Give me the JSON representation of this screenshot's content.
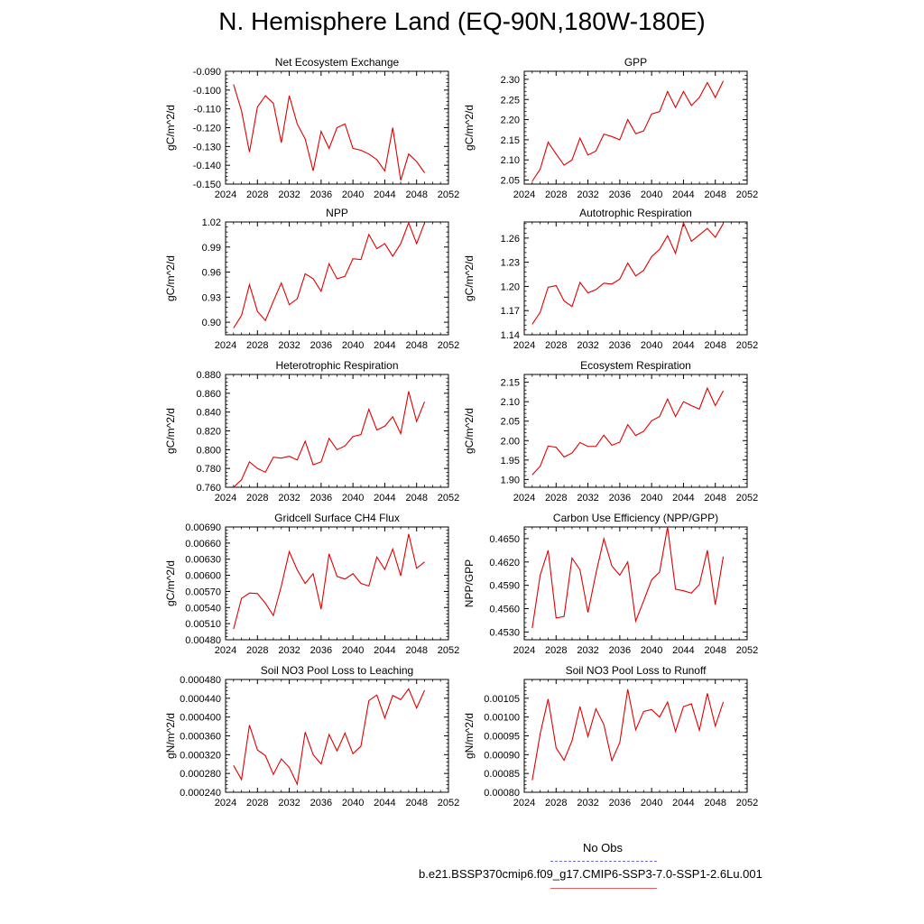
{
  "title": "N. Hemisphere Land (EQ-90N,180W-180E)",
  "legend": {
    "obs_label": "No Obs",
    "case_label": "b.e21.BSSP370cmip6.f09_g17.CMIP6-SSP3-7.0-SSP1-2.6Lu.001",
    "obs_color": "#6a6adf",
    "case_color": "#e00000"
  },
  "chart_data": [
    {
      "type": "line",
      "title": "Net Ecosystem Exchange",
      "ylabel": "gC/m^2/d",
      "xlim": [
        2024,
        2052
      ],
      "xticks": [
        "2024",
        "2028",
        "2032",
        "2036",
        "2040",
        "2044",
        "2048",
        "2052"
      ],
      "ylim": [
        -0.15,
        -0.09
      ],
      "yticks": [
        "-0.090",
        "-0.100",
        "-0.110",
        "-0.120",
        "-0.130",
        "-0.140",
        "-0.150"
      ],
      "x": [
        2025,
        2026,
        2027,
        2028,
        2029,
        2030,
        2031,
        2032,
        2033,
        2034,
        2035,
        2036,
        2037,
        2038,
        2039,
        2040,
        2041,
        2042,
        2043,
        2044,
        2045,
        2046,
        2047,
        2048,
        2049
      ],
      "series": [
        {
          "color": "#e00000",
          "values": [
            -0.097,
            -0.111,
            -0.133,
            -0.109,
            -0.103,
            -0.107,
            -0.128,
            -0.103,
            -0.118,
            -0.126,
            -0.143,
            -0.122,
            -0.131,
            -0.12,
            -0.118,
            -0.131,
            -0.132,
            -0.134,
            -0.137,
            -0.143,
            -0.12,
            -0.148,
            -0.134,
            -0.138,
            -0.144
          ]
        }
      ]
    },
    {
      "type": "line",
      "title": "GPP",
      "ylabel": "gC/m^2/d",
      "xlim": [
        2024,
        2052
      ],
      "xticks": [
        "2024",
        "2028",
        "2032",
        "2036",
        "2040",
        "2044",
        "2048",
        "2052"
      ],
      "ylim": [
        2.04,
        2.32
      ],
      "yticks": [
        "2.30",
        "2.25",
        "2.20",
        "2.15",
        "2.10",
        "2.05"
      ],
      "ytick_values": [
        2.3,
        2.25,
        2.2,
        2.15,
        2.1,
        2.05
      ],
      "x": [
        2025,
        2026,
        2027,
        2028,
        2029,
        2030,
        2031,
        2032,
        2033,
        2034,
        2035,
        2036,
        2037,
        2038,
        2039,
        2040,
        2041,
        2042,
        2043,
        2044,
        2045,
        2046,
        2047,
        2048,
        2049
      ],
      "series": [
        {
          "color": "#e00000",
          "values": [
            2.047,
            2.077,
            2.144,
            2.115,
            2.087,
            2.1,
            2.154,
            2.112,
            2.122,
            2.164,
            2.158,
            2.15,
            2.2,
            2.165,
            2.172,
            2.214,
            2.22,
            2.27,
            2.23,
            2.27,
            2.235,
            2.255,
            2.292,
            2.255,
            2.296
          ]
        }
      ]
    },
    {
      "type": "line",
      "title": "NPP",
      "ylabel": "gC/m^2/d",
      "xlim": [
        2024,
        2052
      ],
      "xticks": [
        "2024",
        "2028",
        "2032",
        "2036",
        "2040",
        "2044",
        "2048",
        "2052"
      ],
      "ylim": [
        0.885,
        1.02
      ],
      "yticks": [
        "1.02",
        "0.99",
        "0.96",
        "0.93",
        "0.90"
      ],
      "ytick_values": [
        1.02,
        0.99,
        0.96,
        0.93,
        0.9
      ],
      "x": [
        2025,
        2026,
        2027,
        2028,
        2029,
        2030,
        2031,
        2032,
        2033,
        2034,
        2035,
        2036,
        2037,
        2038,
        2039,
        2040,
        2041,
        2042,
        2043,
        2044,
        2045,
        2046,
        2047,
        2048,
        2049
      ],
      "series": [
        {
          "color": "#e00000",
          "values": [
            0.893,
            0.908,
            0.945,
            0.913,
            0.902,
            0.925,
            0.947,
            0.921,
            0.928,
            0.958,
            0.952,
            0.937,
            0.97,
            0.952,
            0.955,
            0.976,
            0.975,
            1.005,
            0.988,
            0.994,
            0.979,
            0.994,
            1.019,
            0.994,
            1.019
          ]
        }
      ]
    },
    {
      "type": "line",
      "title": "Autotrophic Respiration",
      "ylabel": "gC/m^2/d",
      "xlim": [
        2024,
        2052
      ],
      "xticks": [
        "2024",
        "2028",
        "2032",
        "2036",
        "2040",
        "2044",
        "2048",
        "2052"
      ],
      "ylim": [
        1.14,
        1.28
      ],
      "yticks": [
        "1.26",
        "1.23",
        "1.20",
        "1.17",
        "1.14"
      ],
      "ytick_values": [
        1.26,
        1.23,
        1.2,
        1.17,
        1.14
      ],
      "x": [
        2025,
        2026,
        2027,
        2028,
        2029,
        2030,
        2031,
        2032,
        2033,
        2034,
        2035,
        2036,
        2037,
        2038,
        2039,
        2040,
        2041,
        2042,
        2043,
        2044,
        2045,
        2046,
        2047,
        2048,
        2049
      ],
      "series": [
        {
          "color": "#e00000",
          "values": [
            1.153,
            1.168,
            1.199,
            1.201,
            1.182,
            1.175,
            1.205,
            1.192,
            1.196,
            1.204,
            1.203,
            1.209,
            1.229,
            1.213,
            1.22,
            1.237,
            1.246,
            1.263,
            1.241,
            1.279,
            1.256,
            1.264,
            1.272,
            1.261,
            1.278
          ]
        }
      ]
    },
    {
      "type": "line",
      "title": "Heterotrophic Respiration",
      "ylabel": "gC/m^2/d",
      "xlim": [
        2024,
        2052
      ],
      "xticks": [
        "2024",
        "2028",
        "2032",
        "2036",
        "2040",
        "2044",
        "2048",
        "2052"
      ],
      "ylim": [
        0.76,
        0.88
      ],
      "yticks": [
        "0.880",
        "0.860",
        "0.840",
        "0.820",
        "0.800",
        "0.780",
        "0.760"
      ],
      "x": [
        2025,
        2026,
        2027,
        2028,
        2029,
        2030,
        2031,
        2032,
        2033,
        2034,
        2035,
        2036,
        2037,
        2038,
        2039,
        2040,
        2041,
        2042,
        2043,
        2044,
        2045,
        2046,
        2047,
        2048,
        2049
      ],
      "series": [
        {
          "color": "#e00000",
          "values": [
            0.76,
            0.768,
            0.787,
            0.78,
            0.776,
            0.792,
            0.791,
            0.793,
            0.789,
            0.809,
            0.784,
            0.787,
            0.812,
            0.8,
            0.804,
            0.814,
            0.816,
            0.843,
            0.821,
            0.825,
            0.835,
            0.817,
            0.862,
            0.83,
            0.851
          ]
        }
      ]
    },
    {
      "type": "line",
      "title": "Ecosystem Respiration",
      "ylabel": "gC/m^2/d",
      "xlim": [
        2024,
        2052
      ],
      "xticks": [
        "2024",
        "2028",
        "2032",
        "2036",
        "2040",
        "2044",
        "2048",
        "2052"
      ],
      "ylim": [
        1.88,
        2.17
      ],
      "yticks": [
        "2.15",
        "2.10",
        "2.05",
        "2.00",
        "1.95",
        "1.90"
      ],
      "ytick_values": [
        2.15,
        2.1,
        2.05,
        2.0,
        1.95,
        1.9
      ],
      "x": [
        2025,
        2026,
        2027,
        2028,
        2029,
        2030,
        2031,
        2032,
        2033,
        2034,
        2035,
        2036,
        2037,
        2038,
        2039,
        2040,
        2041,
        2042,
        2043,
        2044,
        2045,
        2046,
        2047,
        2048,
        2049
      ],
      "series": [
        {
          "color": "#e00000",
          "values": [
            1.912,
            1.934,
            1.986,
            1.983,
            1.958,
            1.968,
            1.995,
            1.985,
            1.985,
            2.014,
            1.988,
            1.996,
            2.041,
            2.013,
            2.024,
            2.051,
            2.062,
            2.107,
            2.062,
            2.1,
            2.09,
            2.081,
            2.135,
            2.09,
            2.128
          ]
        }
      ]
    },
    {
      "type": "line",
      "title": "Gridcell Surface CH4 Flux",
      "ylabel": "gC/m^2/d",
      "xlim": [
        2024,
        2052
      ],
      "xticks": [
        "2024",
        "2028",
        "2032",
        "2036",
        "2040",
        "2044",
        "2048",
        "2052"
      ],
      "ylim": [
        0.0048,
        0.0069
      ],
      "yticks": [
        "0.00690",
        "0.00660",
        "0.00630",
        "0.00600",
        "0.00570",
        "0.00540",
        "0.00510",
        "0.00480"
      ],
      "x": [
        2025,
        2026,
        2027,
        2028,
        2029,
        2030,
        2031,
        2032,
        2033,
        2034,
        2035,
        2036,
        2037,
        2038,
        2039,
        2040,
        2041,
        2042,
        2043,
        2044,
        2045,
        2046,
        2047,
        2048,
        2049
      ],
      "series": [
        {
          "color": "#e00000",
          "values": [
            0.005,
            0.00557,
            0.00567,
            0.00566,
            0.00548,
            0.00525,
            0.0058,
            0.00644,
            0.0061,
            0.00585,
            0.00603,
            0.00537,
            0.0064,
            0.00598,
            0.00593,
            0.00603,
            0.00585,
            0.0058,
            0.00634,
            0.00611,
            0.00649,
            0.00599,
            0.00677,
            0.00613,
            0.00625
          ]
        }
      ]
    },
    {
      "type": "line",
      "title": "Carbon Use Efficiency (NPP/GPP)",
      "ylabel": "NPP/GPP",
      "xlim": [
        2024,
        2052
      ],
      "xticks": [
        "2024",
        "2028",
        "2032",
        "2036",
        "2040",
        "2044",
        "2048",
        "2052"
      ],
      "ylim": [
        0.452,
        0.4665
      ],
      "yticks": [
        "0.4650",
        "0.4620",
        "0.4590",
        "0.4560",
        "0.4530"
      ],
      "ytick_values": [
        0.465,
        0.462,
        0.459,
        0.456,
        0.453
      ],
      "x": [
        2025,
        2026,
        2027,
        2028,
        2029,
        2030,
        2031,
        2032,
        2033,
        2034,
        2035,
        2036,
        2037,
        2038,
        2039,
        2040,
        2041,
        2042,
        2043,
        2044,
        2045,
        2046,
        2047,
        2048,
        2049
      ],
      "series": [
        {
          "color": "#e00000",
          "values": [
            0.4535,
            0.4603,
            0.4635,
            0.4548,
            0.455,
            0.4625,
            0.461,
            0.4555,
            0.4605,
            0.465,
            0.4615,
            0.4603,
            0.462,
            0.4544,
            0.457,
            0.4597,
            0.4607,
            0.4665,
            0.4585,
            0.4583,
            0.458,
            0.4591,
            0.4635,
            0.4565,
            0.4627
          ]
        }
      ]
    },
    {
      "type": "line",
      "title": "Soil NO3 Pool Loss to Leaching",
      "ylabel": "gN/m^2/d",
      "xlim": [
        2024,
        2052
      ],
      "xticks": [
        "2024",
        "2028",
        "2032",
        "2036",
        "2040",
        "2044",
        "2048",
        "2052"
      ],
      "ylim": [
        0.00024,
        0.00048
      ],
      "yticks": [
        "0.000480",
        "0.000440",
        "0.000400",
        "0.000360",
        "0.000320",
        "0.000280",
        "0.000240"
      ],
      "x": [
        2025,
        2026,
        2027,
        2028,
        2029,
        2030,
        2031,
        2032,
        2033,
        2034,
        2035,
        2036,
        2037,
        2038,
        2039,
        2040,
        2041,
        2042,
        2043,
        2044,
        2045,
        2046,
        2047,
        2048,
        2049
      ],
      "series": [
        {
          "color": "#e00000",
          "values": [
            0.000297,
            0.000267,
            0.000383,
            0.00033,
            0.000318,
            0.000278,
            0.000311,
            0.000293,
            0.000257,
            0.000368,
            0.00032,
            0.0003,
            0.000363,
            0.000328,
            0.000366,
            0.000322,
            0.000338,
            0.000435,
            0.000447,
            0.000398,
            0.000446,
            0.000437,
            0.00046,
            0.000419,
            0.000457
          ]
        }
      ]
    },
    {
      "type": "line",
      "title": "Soil NO3 Pool Loss to Runoff",
      "ylabel": "gN/m^2/d",
      "xlim": [
        2024,
        2052
      ],
      "xticks": [
        "2024",
        "2028",
        "2032",
        "2036",
        "2040",
        "2044",
        "2048",
        "2052"
      ],
      "ylim": [
        0.0008,
        0.0011
      ],
      "yticks": [
        "0.00105",
        "0.00100",
        "0.00095",
        "0.00090",
        "0.00085",
        "0.00080"
      ],
      "ytick_values": [
        0.00105,
        0.001,
        0.00095,
        0.0009,
        0.00085,
        0.0008
      ],
      "x": [
        2025,
        2026,
        2027,
        2028,
        2029,
        2030,
        2031,
        2032,
        2033,
        2034,
        2035,
        2036,
        2037,
        2038,
        2039,
        2040,
        2041,
        2042,
        2043,
        2044,
        2045,
        2046,
        2047,
        2048,
        2049
      ],
      "series": [
        {
          "color": "#e00000",
          "values": [
            0.000832,
            0.000955,
            0.001048,
            0.000918,
            0.000885,
            0.000937,
            0.001028,
            0.000948,
            0.001022,
            0.00098,
            0.000884,
            0.000932,
            0.001074,
            0.000966,
            0.001015,
            0.00102,
            0.001,
            0.00104,
            0.000962,
            0.001028,
            0.001035,
            0.000965,
            0.001063,
            0.000976,
            0.00104
          ]
        }
      ]
    }
  ]
}
